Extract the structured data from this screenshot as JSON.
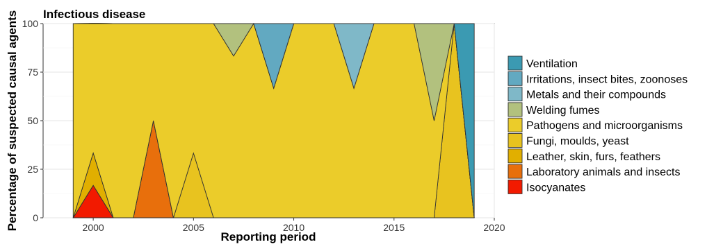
{
  "chart_data": {
    "type": "area",
    "stacked": true,
    "title": "Infectious disease",
    "xlabel": "Reporting period",
    "ylabel": "Percentage of suspected causal agents",
    "xlim": [
      1997.5,
      2020
    ],
    "ylim": [
      0,
      100
    ],
    "xticks": [
      2000,
      2005,
      2010,
      2015,
      2020
    ],
    "yticks": [
      0,
      25,
      50,
      75,
      100
    ],
    "grid": true,
    "legend_position": "right",
    "x": [
      1999,
      2000,
      2001,
      2002,
      2003,
      2004,
      2005,
      2006,
      2007,
      2008,
      2009,
      2010,
      2011,
      2012,
      2013,
      2014,
      2015,
      2016,
      2017,
      2018,
      2019
    ],
    "series": [
      {
        "name": "Isocyanates",
        "color": "#F21A00",
        "values": [
          0,
          16.7,
          0,
          0,
          0,
          0,
          0,
          0,
          0,
          0,
          0,
          0,
          0,
          0,
          0,
          0,
          0,
          0,
          0,
          0,
          0
        ]
      },
      {
        "name": "Laboratory animals and insects",
        "color": "#E86F0C",
        "values": [
          0,
          0,
          0,
          0,
          50,
          0,
          0,
          0,
          0,
          0,
          0,
          0,
          0,
          0,
          0,
          0,
          0,
          0,
          0,
          0,
          0
        ]
      },
      {
        "name": "Leather, skin, furs, feathers",
        "color": "#E1AF00",
        "values": [
          0,
          16.7,
          0,
          0,
          0,
          0,
          0,
          0,
          0,
          0,
          0,
          0,
          0,
          0,
          0,
          0,
          0,
          0,
          0,
          0,
          0
        ]
      },
      {
        "name": "Fungi, moulds, yeast",
        "color": "#E8C31F",
        "values": [
          0,
          0,
          0,
          0,
          0,
          0,
          33.3,
          0,
          0,
          0,
          0,
          0,
          0,
          0,
          0,
          0,
          0,
          0,
          0,
          100,
          0
        ]
      },
      {
        "name": "Pathogens and microorganisms",
        "color": "#EBCC2A",
        "values": [
          100,
          66.7,
          100,
          100,
          50,
          100,
          66.7,
          100,
          83.3,
          100,
          66.7,
          100,
          100,
          100,
          66.7,
          100,
          100,
          100,
          50,
          0,
          0
        ]
      },
      {
        "name": "Welding fumes",
        "color": "#B2C17E",
        "values": [
          0,
          0,
          0,
          0,
          0,
          0,
          0,
          0,
          16.7,
          0,
          0,
          0,
          0,
          0,
          0,
          0,
          0,
          0,
          50,
          0,
          0
        ]
      },
      {
        "name": "Metals and their compounds",
        "color": "#7FB8C8",
        "values": [
          0,
          0,
          0,
          0,
          0,
          0,
          0,
          0,
          0,
          0,
          0,
          0,
          0,
          0,
          33.3,
          0,
          0,
          0,
          0,
          0,
          0
        ]
      },
      {
        "name": "Irritations, insect bites, zoonoses",
        "color": "#62A9C1",
        "values": [
          0,
          0,
          0,
          0,
          0,
          0,
          0,
          0,
          0,
          0,
          33.3,
          0,
          0,
          0,
          0,
          0,
          0,
          0,
          0,
          0,
          0
        ]
      },
      {
        "name": "Ventilation",
        "color": "#3B9AB2",
        "values": [
          0,
          0,
          0,
          0,
          0,
          0,
          0,
          0,
          0,
          0,
          0,
          0,
          0,
          0,
          0,
          0,
          0,
          0,
          0,
          0,
          100
        ]
      }
    ],
    "legend_order": [
      "Ventilation",
      "Irritations, insect bites, zoonoses",
      "Metals and their compounds",
      "Welding fumes",
      "Pathogens and microorganisms",
      "Fungi, moulds, yeast",
      "Leather, skin, furs, feathers",
      "Laboratory animals and insects",
      "Isocyanates"
    ]
  }
}
